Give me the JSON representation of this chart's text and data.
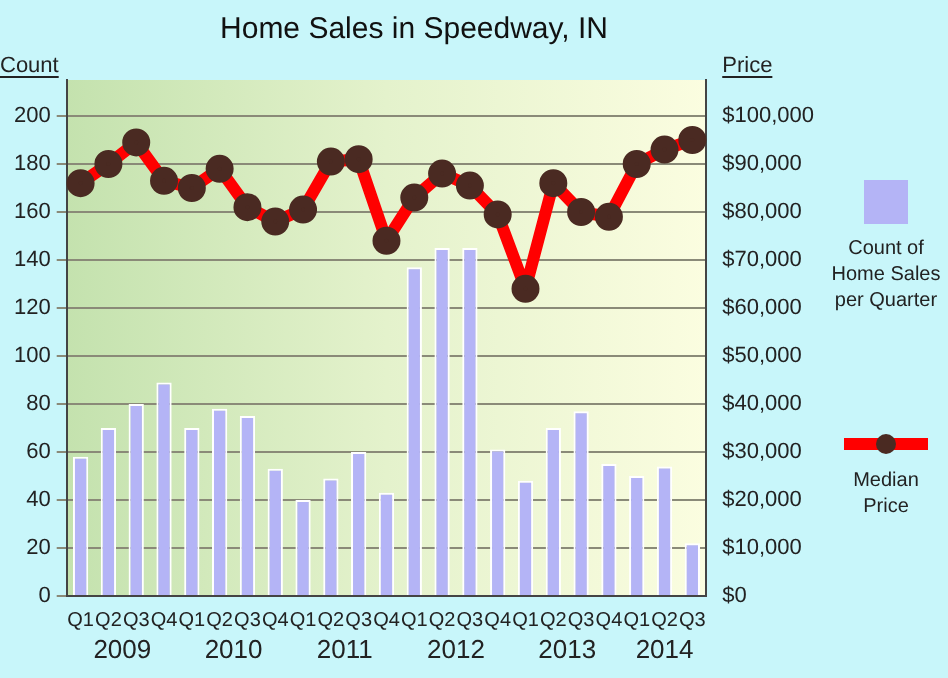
{
  "chart_data": {
    "type": "bar",
    "title": "Home Sales in Speedway, IN",
    "ylabel": "Count",
    "y2label": "Price",
    "categories": [
      "Q1",
      "Q2",
      "Q3",
      "Q4",
      "Q1",
      "Q2",
      "Q3",
      "Q4",
      "Q1",
      "Q2",
      "Q3",
      "Q4",
      "Q1",
      "Q2",
      "Q3",
      "Q4",
      "Q1",
      "Q2",
      "Q3",
      "Q4",
      "Q1",
      "Q2",
      "Q3"
    ],
    "series": [
      {
        "name": "Count of Home Sales per Quarter",
        "color": "#b4b4f6",
        "values": [
          58,
          70,
          80,
          89,
          70,
          78,
          75,
          53,
          40,
          49,
          60,
          43,
          137,
          145,
          145,
          61,
          48,
          70,
          77,
          55,
          50,
          54,
          22
        ]
      },
      {
        "name": "Median Price",
        "type": "line",
        "axis": "y2",
        "color": "#ff0000",
        "values": [
          86000,
          90000,
          94500,
          86500,
          85000,
          89000,
          81000,
          78000,
          80500,
          90500,
          91000,
          74000,
          83000,
          88000,
          85500,
          79500,
          64000,
          86000,
          80000,
          79000,
          90000,
          93000,
          95000
        ]
      }
    ],
    "ylim": [
      0,
      215
    ],
    "yticks": [
      0,
      20,
      40,
      60,
      80,
      100,
      120,
      140,
      160,
      180,
      200
    ],
    "y2lim": [
      0,
      107500
    ],
    "y2ticks": [
      {
        "value": 0,
        "label": "$0"
      },
      {
        "value": 10000,
        "label": "$10,000"
      },
      {
        "value": 20000,
        "label": "$20,000"
      },
      {
        "value": 30000,
        "label": "$30,000"
      },
      {
        "value": 40000,
        "label": "$40,000"
      },
      {
        "value": 50000,
        "label": "$50,000"
      },
      {
        "value": 60000,
        "label": "$60,000"
      },
      {
        "value": 70000,
        "label": "$70,000"
      },
      {
        "value": 80000,
        "label": "$80,000"
      },
      {
        "value": 90000,
        "label": "$90,000"
      },
      {
        "value": 100000,
        "label": "$100,000"
      }
    ],
    "annotations": [
      "2009",
      "2010",
      "2011",
      "2012",
      "2013",
      "2014"
    ],
    "grid": "y",
    "legend": "right",
    "marker": "circle",
    "line_style": "solid"
  }
}
